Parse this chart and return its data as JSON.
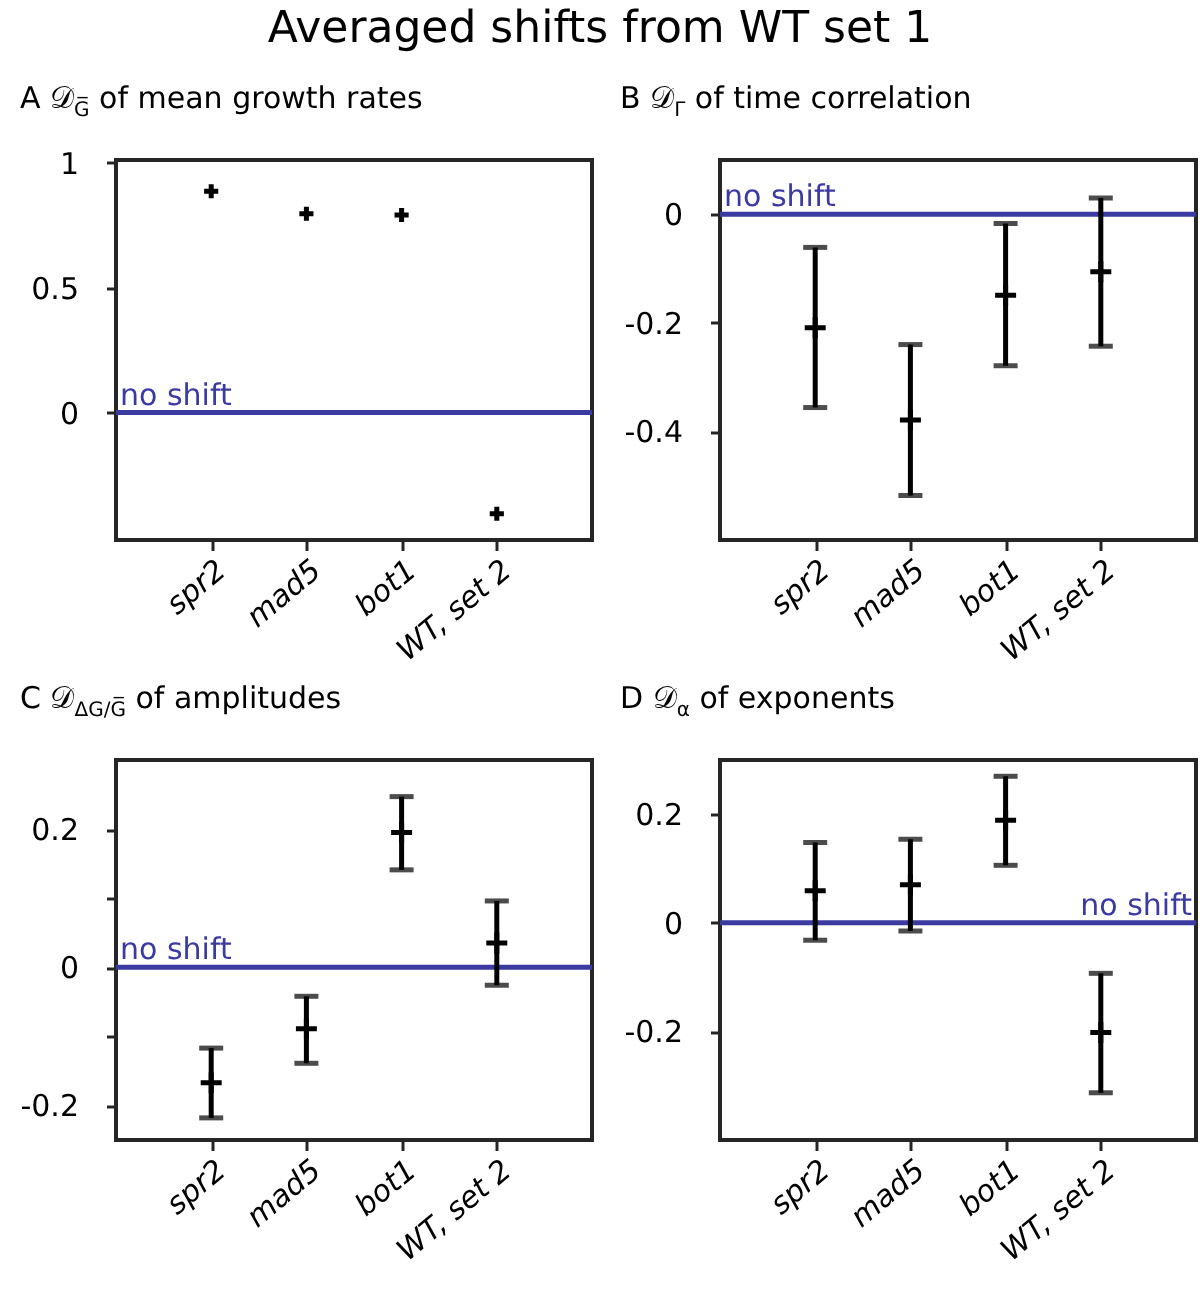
{
  "chart_data": [
    {
      "type": "scatter",
      "title": "Averaged shifts from WT set 1",
      "subtitle": "A  𝒟$_{G̅}$ of mean growth rates",
      "categories": [
        "spr2",
        "mad5",
        "bot1",
        "WT, set 2"
      ],
      "color": "#000000",
      "marker": "cross",
      "values": [
        0.885,
        0.795,
        0.79,
        -0.405
      ],
      "ylim": [
        -0.51,
        1.01
      ],
      "yticks": [
        0,
        0.5,
        1
      ],
      "grid": false,
      "ref_lines": [
        {
          "axis": "y",
          "value": 0,
          "label": "no shift",
          "color": "#3a3aa0"
        }
      ]
    },
    {
      "type": "scatter",
      "title": "B 𝒟$_{Γ}$ of time correlation",
      "categories": [
        "spr2",
        "mad5",
        "bot1",
        "WT, set 2"
      ],
      "color": "#000000",
      "marker": "cross",
      "values": [
        -0.209,
        -0.379,
        -0.149,
        -0.106
      ],
      "errors": [
        [
          -0.356,
          -0.061
        ],
        [
          -0.518,
          -0.24
        ],
        [
          -0.279,
          -0.017
        ],
        [
          -0.243,
          0.03
        ]
      ],
      "ylim": [
        -0.6,
        0.1
      ],
      "yticks": [
        -0.4,
        -0.2,
        0
      ],
      "grid": false,
      "ref_lines": [
        {
          "axis": "y",
          "value": 0,
          "label": "no shift",
          "color": "#3a3aa0"
        }
      ]
    },
    {
      "type": "scatter",
      "title": "C  𝒟$_{ΔG/G̅}$ of amplitudes",
      "categories": [
        "spr2",
        "mad5",
        "bot1",
        "WT, set 2"
      ],
      "color": "#000000",
      "marker": "cross",
      "values": [
        -0.167,
        -0.089,
        0.195,
        0.035
      ],
      "errors": [
        [
          -0.218,
          -0.117
        ],
        [
          -0.139,
          -0.042
        ],
        [
          0.141,
          0.247
        ],
        [
          -0.026,
          0.096
        ]
      ],
      "ylim": [
        -0.25,
        0.3
      ],
      "yticks": [
        -0.2,
        {
          "value": -0.1,
          "label": null
        },
        0,
        {
          "value": 0.1,
          "label": null
        },
        0.2
      ],
      "grid": false,
      "ref_lines": [
        {
          "axis": "y",
          "value": 0,
          "label": "no shift",
          "color": "#3a3aa0"
        }
      ]
    },
    {
      "type": "scatter",
      "title": "D  𝒟$_{α}$ of exponents",
      "categories": [
        "spr2",
        "mad5",
        "bot1",
        "WT, set 2"
      ],
      "color": "#000000",
      "marker": "cross",
      "values": [
        0.059,
        0.07,
        0.189,
        -0.202
      ],
      "errors": [
        [
          -0.032,
          0.148
        ],
        [
          -0.015,
          0.154
        ],
        [
          0.106,
          0.27
        ],
        [
          -0.313,
          -0.093
        ]
      ],
      "ylim": [
        -0.4,
        0.3
      ],
      "yticks": [
        -0.2,
        0,
        0.2
      ],
      "grid": false,
      "ref_lines": [
        {
          "axis": "y",
          "value": 0,
          "label": "no shift",
          "color": "#3a3aa0"
        }
      ]
    }
  ]
}
